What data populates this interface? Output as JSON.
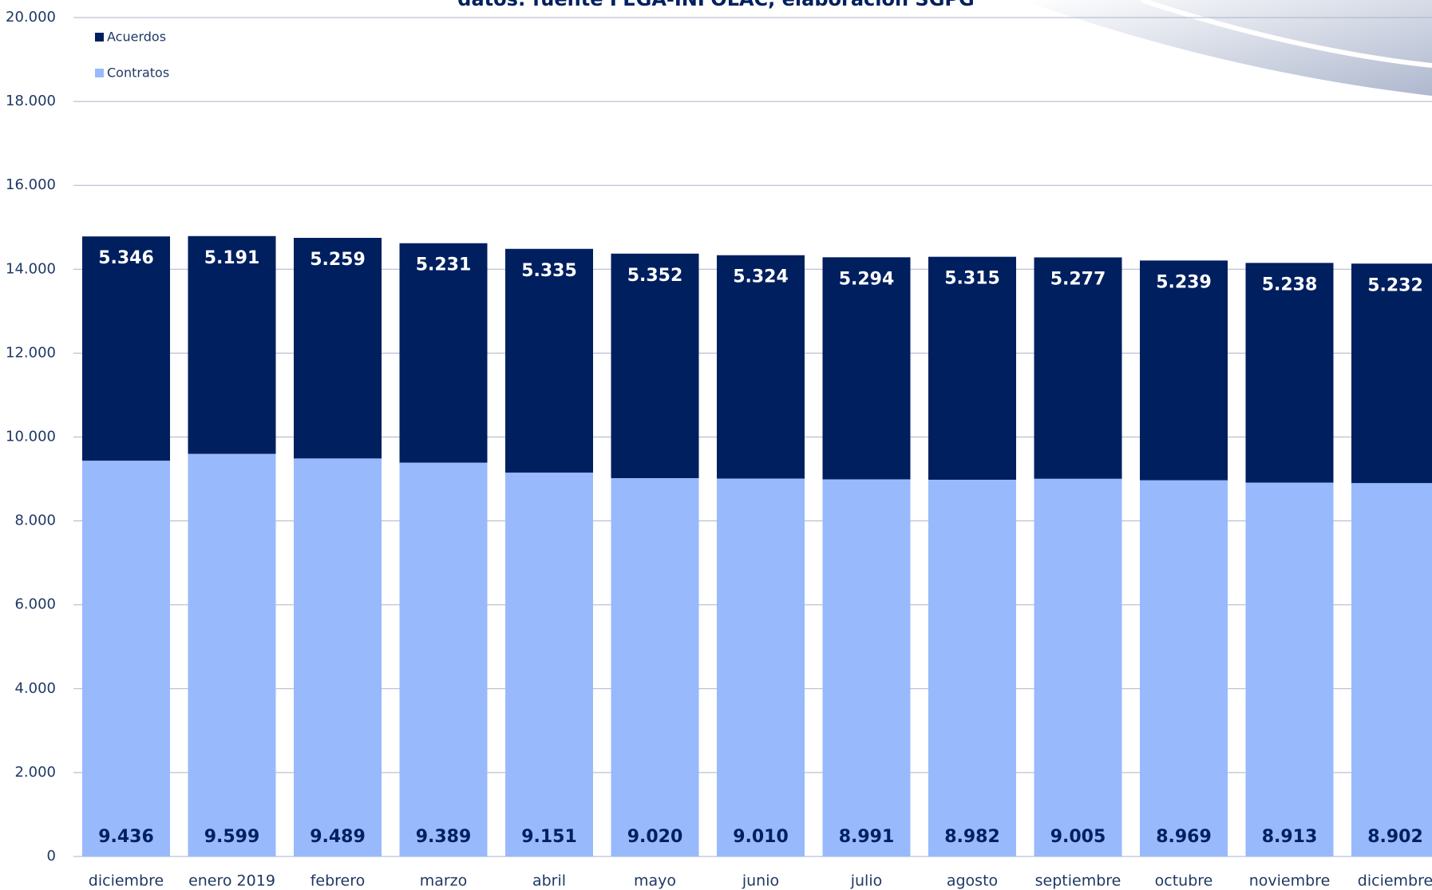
{
  "chart_data": {
    "type": "stacked_bar",
    "title": "datos: fuente FEGA-INFOLAC, elaboración SGPG",
    "categories": [
      "diciembre",
      "enero 2019",
      "febrero",
      "marzo",
      "abril",
      "mayo",
      "junio",
      "julio",
      "agosto",
      "septiembre",
      "octubre",
      "noviembre",
      "diciembre"
    ],
    "series": [
      {
        "name": "Contratos",
        "color": "#99b9fd",
        "label_color": "#002060",
        "values": [
          9436,
          9599,
          9489,
          9389,
          9151,
          9020,
          9010,
          8991,
          8982,
          9005,
          8969,
          8913,
          8902
        ],
        "value_labels": [
          "9.436",
          "9.599",
          "9.489",
          "9.389",
          "9.151",
          "9.020",
          "9.010",
          "8.991",
          "8.982",
          "9.005",
          "8.969",
          "8.913",
          "8.902"
        ]
      },
      {
        "name": "Acuerdos",
        "color": "#001f5f",
        "label_color": "#ffffff",
        "values": [
          5346,
          5191,
          5259,
          5231,
          5335,
          5352,
          5324,
          5294,
          5315,
          5277,
          5239,
          5238,
          5232
        ],
        "value_labels": [
          "5.346",
          "5.191",
          "5.259",
          "5.231",
          "5.335",
          "5.352",
          "5.324",
          "5.294",
          "5.315",
          "5.277",
          "5.239",
          "5.238",
          "5.232"
        ]
      }
    ],
    "ylim": [
      0,
      20000
    ],
    "yticks": [
      0,
      {
        "value": 2000,
        "label": "2.000"
      },
      {
        "value": 4000,
        "label": "4.000"
      },
      {
        "value": 6000,
        "label": "6.000"
      },
      {
        "value": 8000,
        "label": "8.000"
      },
      {
        "value": 10000,
        "label": "10.000"
      },
      {
        "value": 12000,
        "label": "12.000"
      },
      {
        "value": 14000,
        "label": "14.000"
      },
      {
        "value": 16000,
        "label": "16.000"
      },
      {
        "value": 18000,
        "label": "18.000"
      },
      {
        "value": 20000,
        "label": "20.000"
      }
    ],
    "grid": true,
    "legend": "top-left"
  }
}
